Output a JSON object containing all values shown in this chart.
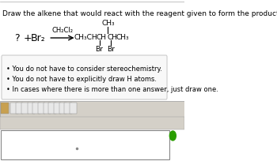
{
  "title_text": "Draw the alkene that would react with the reagent given to form the product shown.",
  "question_mark": "?",
  "plus_sign": "+",
  "reagent1": "Br₂",
  "reagent2": "CH₂Cl₂",
  "product_formula": "CH₃CHCHCH CH₃",
  "bullet_points": [
    "You do not have to consider stereochemistry.",
    "You do not have to explicitly draw H atoms.",
    "In cases where there is more than one answer, just draw one."
  ],
  "bg_color": "#f5f5f5",
  "white": "#ffffff",
  "box_bg": "#f0f0f0",
  "text_color": "#000000",
  "toolbar_bg": "#d4d0c8",
  "arrow_color": "#000000",
  "green_dot": "#2a9d00"
}
